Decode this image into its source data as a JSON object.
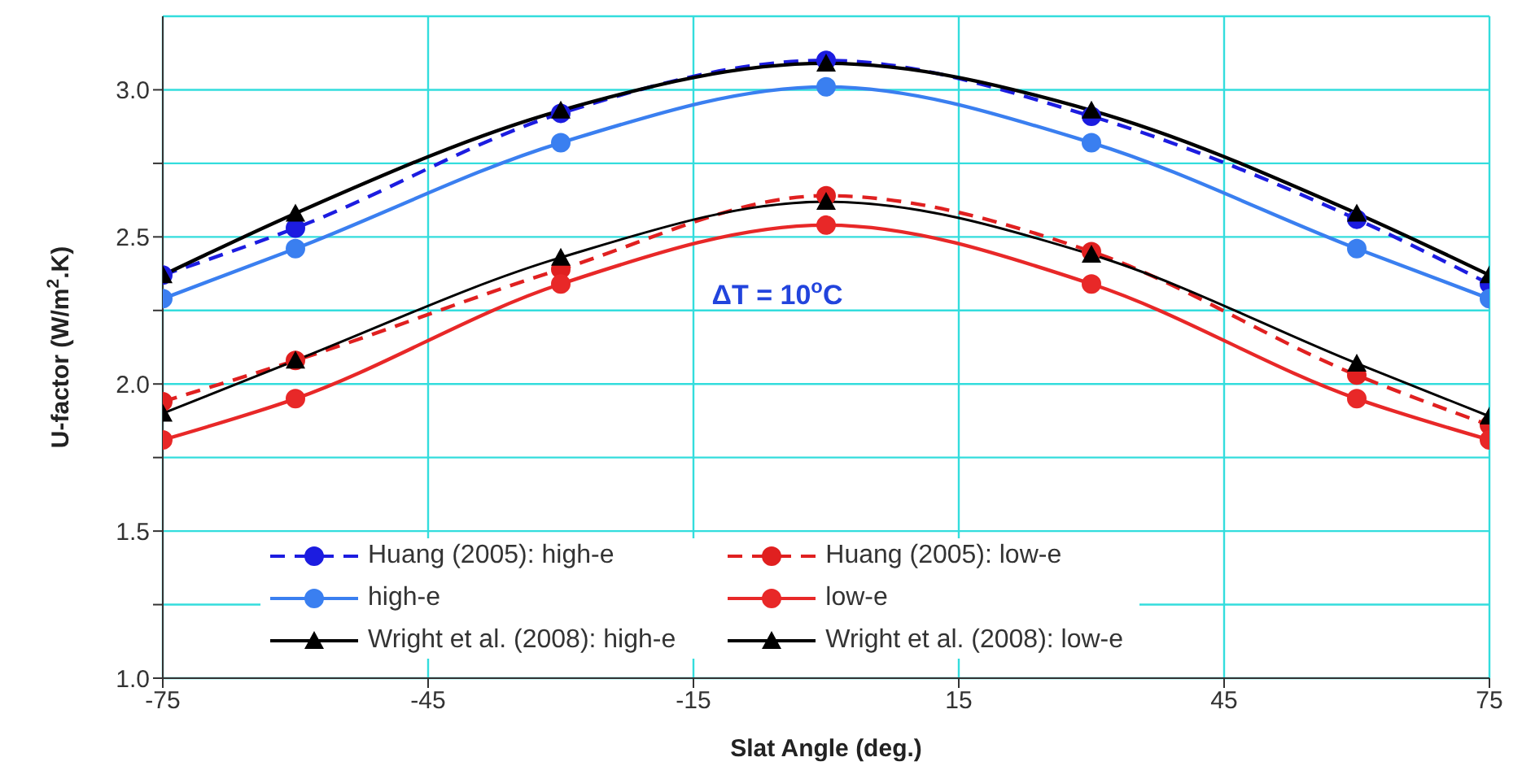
{
  "chart_data": {
    "type": "line",
    "xlabel": "Slat Angle (deg.)",
    "ylabel": "U-factor (W/m$^{2}$.K)",
    "annotations": [
      "ΔT = 10$^{o}$C"
    ],
    "x": [
      -75,
      -60,
      -30,
      0,
      30,
      60,
      75
    ],
    "xlim": [
      -75,
      75
    ],
    "xticks": [
      -75,
      -45,
      -15,
      15,
      45,
      75
    ],
    "ylim": [
      1.0,
      3.25
    ],
    "yticks": [
      {
        "value": 1,
        "label": "1.0"
      },
      {
        "value": 1.25,
        "label": null
      },
      1.5,
      {
        "value": 1.75,
        "label": null
      },
      {
        "value": 2,
        "label": "2.0"
      },
      {
        "value": 2.25,
        "label": null
      },
      2.5,
      {
        "value": 2.75,
        "label": null
      },
      {
        "value": 3,
        "label": "3.0"
      }
    ],
    "grid": true,
    "legend": "bottom",
    "series": [
      {
        "name": "Huang (2005): high-e",
        "color": "#1c1ce0",
        "line_style": "dashed",
        "marker": "circle",
        "values": [
          2.37,
          2.53,
          2.92,
          3.1,
          2.91,
          2.56,
          2.34
        ]
      },
      {
        "name": "Huang (2005): low-e",
        "color": "#e02020",
        "line_style": "dashed",
        "marker": "circle",
        "values": [
          1.94,
          2.08,
          2.39,
          2.64,
          2.45,
          2.03,
          1.86
        ]
      },
      {
        "name": "high-e",
        "color": "#3a7ff0",
        "line_style": "solid",
        "marker": "circle",
        "values": [
          2.29,
          2.46,
          2.82,
          3.01,
          2.82,
          2.46,
          2.29
        ]
      },
      {
        "name": "low-e",
        "color": "#e82828",
        "line_style": "solid",
        "marker": "circle",
        "values": [
          1.81,
          1.95,
          2.34,
          2.54,
          2.34,
          1.95,
          1.81
        ]
      },
      {
        "name": "Wright et al. (2008): high-e",
        "color": "#000000",
        "line_style": "solid",
        "marker": "triangle",
        "values": [
          2.37,
          2.58,
          2.93,
          3.09,
          2.93,
          2.58,
          2.37
        ]
      },
      {
        "name": "Wright et al. (2008): low-e",
        "color": "#000000",
        "line_style": "solid",
        "marker": "triangle",
        "values": [
          1.9,
          2.08,
          2.43,
          2.62,
          2.44,
          2.07,
          1.89
        ]
      }
    ]
  }
}
